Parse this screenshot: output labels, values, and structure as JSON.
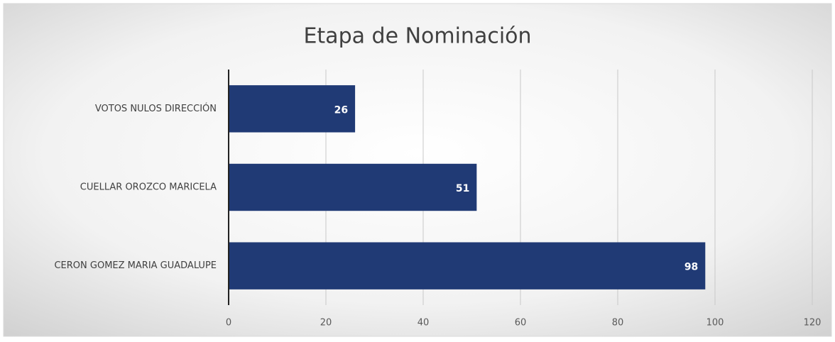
{
  "chart_data": {
    "type": "barh",
    "title": "Etapa de Nominación",
    "categories": [
      "VOTOS NULOS DIRECCIÓN",
      "CUELLAR OROZCO MARICELA",
      "CERON GOMEZ MARIA GUADALUPE"
    ],
    "values": [
      26,
      51,
      98
    ],
    "color": "#203a75",
    "xlim": [
      0,
      120
    ],
    "xticks": [
      0,
      20,
      40,
      60,
      80,
      100,
      120
    ],
    "grid": true
  }
}
